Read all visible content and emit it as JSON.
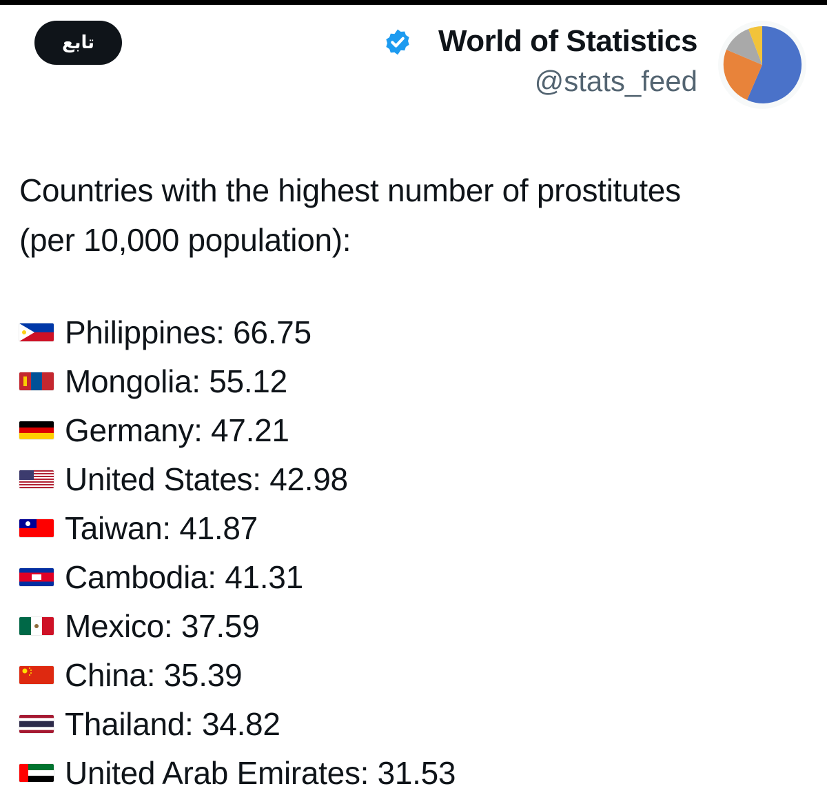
{
  "follow_button": {
    "label": "تابع"
  },
  "profile": {
    "display_name": "World of Statistics",
    "handle": "@stats_feed",
    "verified_icon": "verified-badge-icon",
    "avatar": "pie-chart-icon",
    "avatar_colors": [
      "#4a72c9",
      "#e8833a",
      "#a9a9a9",
      "#f2c33a"
    ],
    "verified_color": "#1d9bf0"
  },
  "tweet": {
    "line1": "Countries with the highest number of prostitutes",
    "line2": "(per 10,000 population):",
    "items": [
      {
        "flag": "philippines-flag-icon",
        "text": "Philippines: 66.75"
      },
      {
        "flag": "mongolia-flag-icon",
        "text": "Mongolia: 55.12"
      },
      {
        "flag": "germany-flag-icon",
        "text": "Germany: 47.21"
      },
      {
        "flag": "usa-flag-icon",
        "text": "United States: 42.98"
      },
      {
        "flag": "taiwan-flag-icon",
        "text": "Taiwan: 41.87"
      },
      {
        "flag": "cambodia-flag-icon",
        "text": "Cambodia: 41.31"
      },
      {
        "flag": "mexico-flag-icon",
        "text": "Mexico: 37.59"
      },
      {
        "flag": "china-flag-icon",
        "text": "China: 35.39"
      },
      {
        "flag": "thailand-flag-icon",
        "text": "Thailand: 34.82"
      },
      {
        "flag": "uae-flag-icon",
        "text": "United Arab Emirates: 31.53"
      }
    ]
  }
}
